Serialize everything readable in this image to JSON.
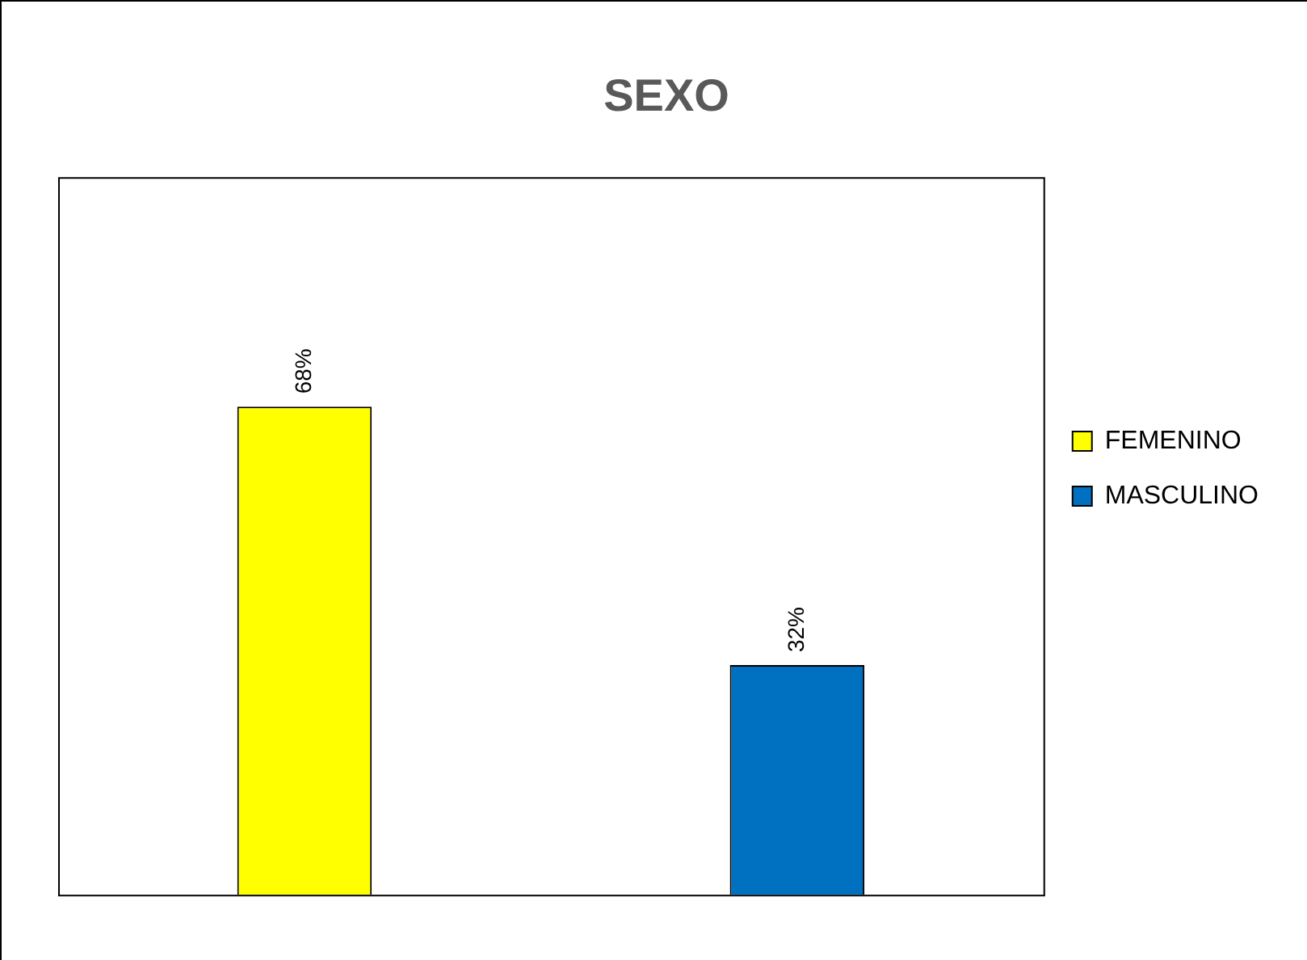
{
  "chart_data": {
    "type": "bar",
    "title": "SEXO",
    "categories": [
      null,
      null
    ],
    "stacked": true,
    "series": [
      {
        "name": "FEMENINO",
        "color": "#ffff00",
        "values": [
          68,
          null
        ],
        "value_labels": [
          "68%",
          null
        ]
      },
      {
        "name": "MASCULINO",
        "color": "#0070c0",
        "values": [
          null,
          32
        ],
        "value_labels": [
          null,
          "32%"
        ]
      }
    ],
    "ylim": [
      0,
      100
    ],
    "grid": false,
    "legend": "right"
  }
}
